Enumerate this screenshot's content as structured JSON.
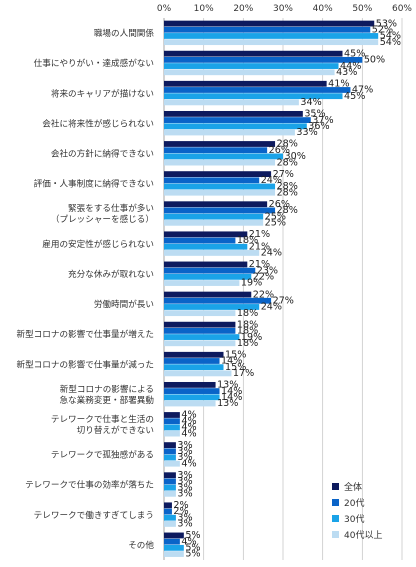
{
  "chart_data": {
    "type": "bar",
    "orientation": "horizontal",
    "categories": [
      "職場の人間関係",
      "仕事にやりがい・達成感がない",
      "将来のキャリアが描けない",
      "会社に将来性が感じられない",
      "会社の方針に納得できない",
      "評価・人事制度に納得できない",
      "緊張をする仕事が多い\n（プレッシャーを感じる）",
      "雇用の安定性が感じられない",
      "充分な休みが取れない",
      "労働時間が長い",
      "新型コロナの影響で仕事量が増えた",
      "新型コロナの影響で仕事量が減った",
      "新型コロナの影響による\n急な業務変更・部署異動",
      "テレワークで仕事と生活の\n切り替えができない",
      "テレワークで孤独感がある",
      "テレワークで仕事の効率が落ちた",
      "テレワークで働きすぎてしまう",
      "その他"
    ],
    "series": [
      {
        "name": "全体",
        "color": "#0d1a5e",
        "values": [
          53,
          45,
          41,
          35,
          28,
          27,
          26,
          21,
          21,
          22,
          18,
          15,
          13,
          4,
          3,
          3,
          2,
          5
        ]
      },
      {
        "name": "20代",
        "color": "#0a64c8",
        "values": [
          52,
          50,
          47,
          37,
          26,
          24,
          28,
          18,
          23,
          27,
          18,
          14,
          14,
          4,
          3,
          3,
          2,
          4
        ]
      },
      {
        "name": "30代",
        "color": "#1aa3e8",
        "values": [
          54,
          44,
          45,
          36,
          30,
          28,
          25,
          21,
          22,
          24,
          19,
          15,
          14,
          4,
          3,
          3,
          3,
          5
        ]
      },
      {
        "name": "40代以上",
        "color": "#bcdcf2",
        "values": [
          54,
          43,
          34,
          33,
          28,
          28,
          25,
          24,
          19,
          18,
          18,
          17,
          13,
          4,
          4,
          3,
          3,
          5
        ]
      }
    ],
    "value_suffix": "%",
    "xlim": [
      0,
      60
    ],
    "xticks": [
      0,
      10,
      20,
      30,
      40,
      50,
      60
    ],
    "xtick_labels": [
      "0%",
      "10%",
      "20%",
      "30%",
      "40%",
      "50%",
      "60%"
    ],
    "grid": true,
    "legend_position": "bottom-right",
    "title": "",
    "xlabel": "",
    "ylabel": ""
  }
}
